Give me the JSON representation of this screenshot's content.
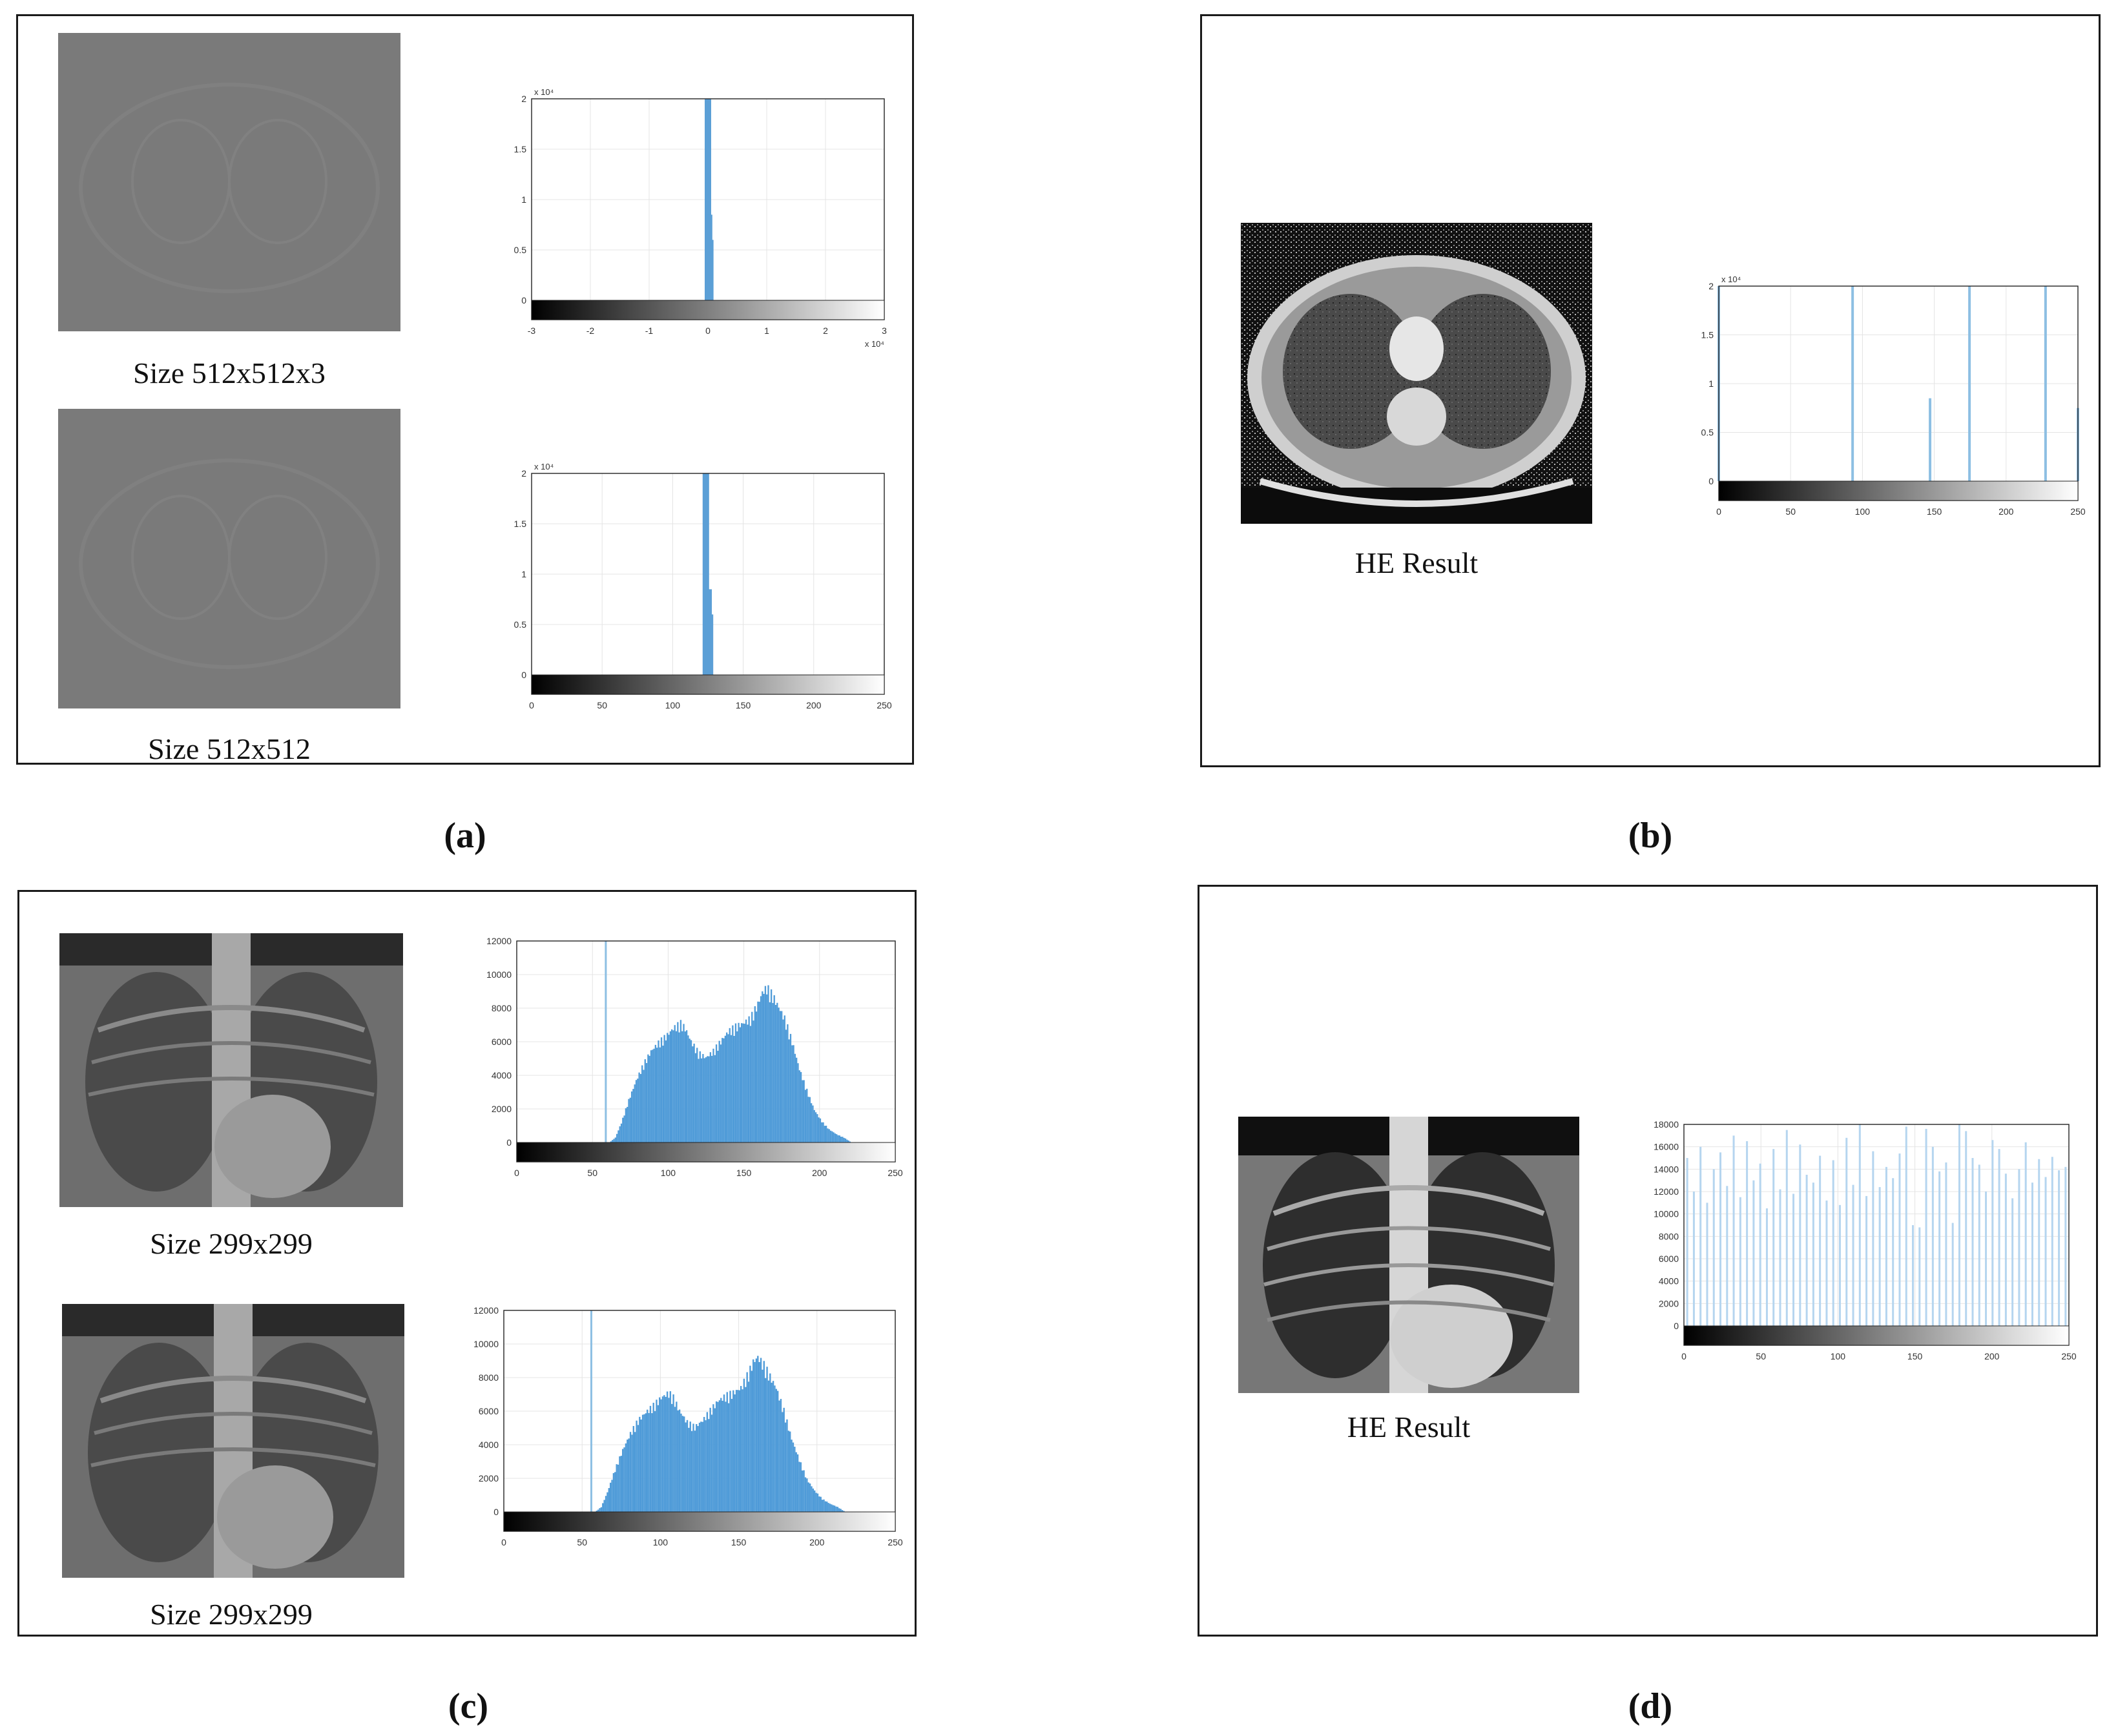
{
  "panels": {
    "a": {
      "label": "(a)",
      "top_caption": "Size 512x512x3",
      "bottom_caption": "Size 512x512",
      "hist_top_exp": "x 10⁴",
      "hist_bottom_exp": "x 10⁴",
      "hist_top_xexp": "x 10⁴"
    },
    "b": {
      "label": "(b)",
      "caption": "HE Result",
      "hist_exp": "x 10⁴"
    },
    "c": {
      "label": "(c)",
      "top_caption": "Size 299x299",
      "bottom_caption": "Size 299x299"
    },
    "d": {
      "label": "(d)",
      "caption": "HE Result"
    }
  },
  "chart_data": [
    {
      "id": "a-top",
      "type": "bar",
      "xlim": [
        -3,
        3
      ],
      "ylim": [
        0,
        2
      ],
      "xticks": [
        "-3",
        "-2",
        "-1",
        "0",
        "1",
        "2",
        "3"
      ],
      "yticks": [
        "0",
        "0.5",
        "1",
        "1.5",
        "2"
      ],
      "bars": [
        {
          "x": 0.0,
          "y": 2.0
        },
        {
          "x": 0.02,
          "y": 0.85
        },
        {
          "x": 0.04,
          "y": 0.6
        }
      ]
    },
    {
      "id": "a-bottom",
      "type": "bar",
      "xlim": [
        0,
        255
      ],
      "ylim": [
        0,
        2
      ],
      "xticks": [
        "0",
        "50",
        "100",
        "150",
        "200",
        "250"
      ],
      "yticks": [
        "0",
        "0.5",
        "1",
        "1.5",
        "2"
      ],
      "bars": [
        {
          "x": 126,
          "y": 2.0
        },
        {
          "x": 128,
          "y": 0.85
        },
        {
          "x": 129,
          "y": 0.6
        }
      ]
    },
    {
      "id": "b",
      "type": "bar",
      "xlim": [
        0,
        255
      ],
      "ylim": [
        0,
        2
      ],
      "xticks": [
        "0",
        "50",
        "100",
        "150",
        "200",
        "250"
      ],
      "yticks": [
        "0",
        "0.5",
        "1",
        "1.5",
        "2"
      ],
      "bars": [
        {
          "x": 0,
          "y": 2.0
        },
        {
          "x": 95,
          "y": 2.0
        },
        {
          "x": 150,
          "y": 0.85
        },
        {
          "x": 178,
          "y": 2.0
        },
        {
          "x": 232,
          "y": 2.0
        },
        {
          "x": 255,
          "y": 0.75
        }
      ]
    },
    {
      "id": "c-top",
      "type": "bar",
      "xlim": [
        0,
        255
      ],
      "ylim": [
        0,
        12000
      ],
      "xticks": [
        "0",
        "50",
        "100",
        "150",
        "200",
        "250"
      ],
      "yticks": [
        "0",
        "2000",
        "4000",
        "6000",
        "8000",
        "10000",
        "12000"
      ],
      "spike": {
        "x": 60,
        "y": 12000
      },
      "profile": [
        [
          62,
          0
        ],
        [
          66,
          300
        ],
        [
          70,
          1200
        ],
        [
          75,
          2600
        ],
        [
          80,
          3800
        ],
        [
          85,
          4800
        ],
        [
          90,
          5600
        ],
        [
          95,
          6100
        ],
        [
          100,
          6500
        ],
        [
          105,
          7000
        ],
        [
          110,
          7300
        ],
        [
          113,
          7000
        ],
        [
          117,
          6200
        ],
        [
          122,
          5500
        ],
        [
          127,
          5200
        ],
        [
          132,
          5600
        ],
        [
          137,
          6200
        ],
        [
          142,
          6800
        ],
        [
          147,
          7100
        ],
        [
          152,
          7300
        ],
        [
          157,
          7600
        ],
        [
          162,
          8500
        ],
        [
          165,
          9200
        ],
        [
          168,
          9500
        ],
        [
          172,
          9000
        ],
        [
          176,
          8300
        ],
        [
          180,
          7600
        ],
        [
          185,
          6200
        ],
        [
          190,
          4500
        ],
        [
          195,
          3200
        ],
        [
          200,
          2000
        ],
        [
          205,
          1300
        ],
        [
          210,
          800
        ],
        [
          215,
          500
        ],
        [
          220,
          300
        ],
        [
          225,
          0
        ]
      ]
    },
    {
      "id": "c-bottom",
      "type": "bar",
      "xlim": [
        0,
        255
      ],
      "ylim": [
        0,
        12000
      ],
      "xticks": [
        "0",
        "50",
        "100",
        "150",
        "200",
        "250"
      ],
      "yticks": [
        "0",
        "2000",
        "4000",
        "6000",
        "8000",
        "10000",
        "12000"
      ],
      "spike": {
        "x": 57,
        "y": 12000
      },
      "profile": [
        [
          59,
          0
        ],
        [
          63,
          300
        ],
        [
          67,
          1200
        ],
        [
          72,
          2600
        ],
        [
          77,
          3800
        ],
        [
          82,
          4800
        ],
        [
          87,
          5600
        ],
        [
          92,
          6100
        ],
        [
          97,
          6500
        ],
        [
          102,
          7000
        ],
        [
          107,
          7300
        ],
        [
          110,
          7000
        ],
        [
          114,
          6200
        ],
        [
          119,
          5500
        ],
        [
          124,
          5200
        ],
        [
          129,
          5600
        ],
        [
          134,
          6200
        ],
        [
          139,
          6800
        ],
        [
          144,
          7100
        ],
        [
          149,
          7300
        ],
        [
          154,
          7600
        ],
        [
          159,
          8500
        ],
        [
          162,
          9200
        ],
        [
          165,
          9500
        ],
        [
          169,
          9000
        ],
        [
          173,
          8300
        ],
        [
          177,
          7600
        ],
        [
          182,
          6200
        ],
        [
          187,
          4500
        ],
        [
          192,
          3200
        ],
        [
          197,
          2000
        ],
        [
          202,
          1300
        ],
        [
          207,
          800
        ],
        [
          212,
          500
        ],
        [
          217,
          300
        ],
        [
          222,
          0
        ]
      ]
    },
    {
      "id": "d",
      "type": "bar",
      "xlim": [
        0,
        255
      ],
      "ylim": [
        0,
        18000
      ],
      "xticks": [
        "0",
        "50",
        "100",
        "150",
        "200",
        "250"
      ],
      "yticks": [
        "0",
        "2000",
        "4000",
        "6000",
        "8000",
        "10000",
        "12000",
        "14000",
        "16000",
        "18000"
      ],
      "values": [
        15000,
        12000,
        16000,
        11000,
        14000,
        15500,
        12500,
        17000,
        11500,
        16500,
        13000,
        14500,
        10500,
        15800,
        12200,
        17500,
        11800,
        16200,
        13500,
        12800,
        15200,
        11200,
        14800,
        10800,
        16800,
        12600,
        18000,
        11600,
        15600,
        12400,
        14200,
        13200,
        15400,
        17800,
        9000,
        8800,
        17600,
        16000,
        13800,
        14600,
        9200,
        18000,
        17400,
        15000,
        14400,
        12000,
        16600,
        15800,
        13600,
        11400,
        14000,
        16400,
        12800,
        14900,
        13300,
        15100,
        13900,
        14200
      ]
    }
  ]
}
